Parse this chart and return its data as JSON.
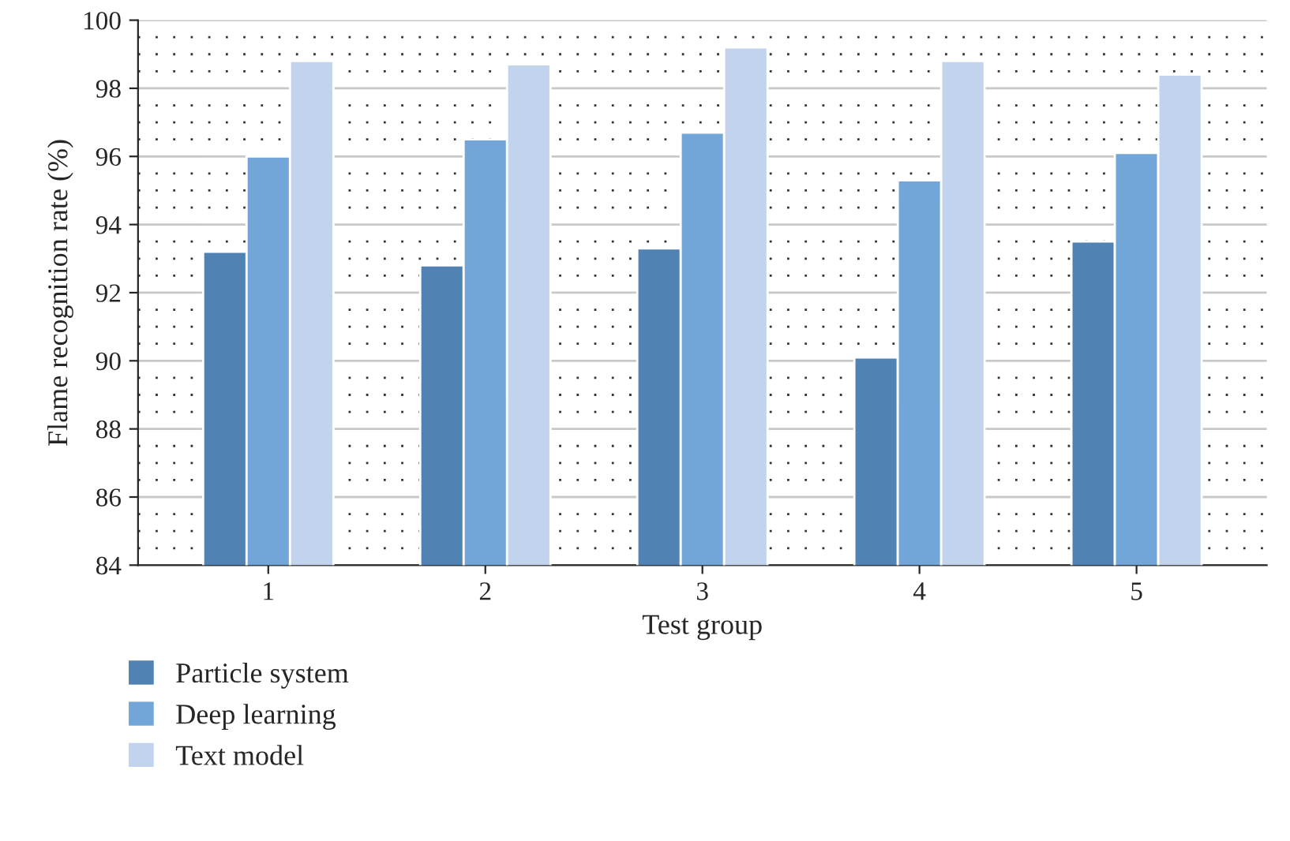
{
  "chart_data": {
    "type": "bar",
    "xlabel": "Test group",
    "ylabel": "Flame recognition rate (%)",
    "categories": [
      "1",
      "2",
      "3",
      "4",
      "5"
    ],
    "series": [
      {
        "name": "Particle system",
        "color": "#5182b4",
        "values": [
          93.2,
          92.8,
          93.3,
          90.1,
          93.5
        ]
      },
      {
        "name": "Deep learning",
        "color": "#72a6d8",
        "values": [
          96.0,
          96.5,
          96.7,
          95.3,
          96.1
        ]
      },
      {
        "name": "Text model",
        "color": "#c2d3ee",
        "values": [
          98.8,
          98.7,
          99.2,
          98.8,
          98.4
        ]
      }
    ],
    "ylim": [
      84,
      100
    ],
    "yticks": [
      84,
      86,
      88,
      90,
      92,
      94,
      96,
      98,
      100
    ],
    "grid": "y",
    "legend": "bottom left"
  }
}
